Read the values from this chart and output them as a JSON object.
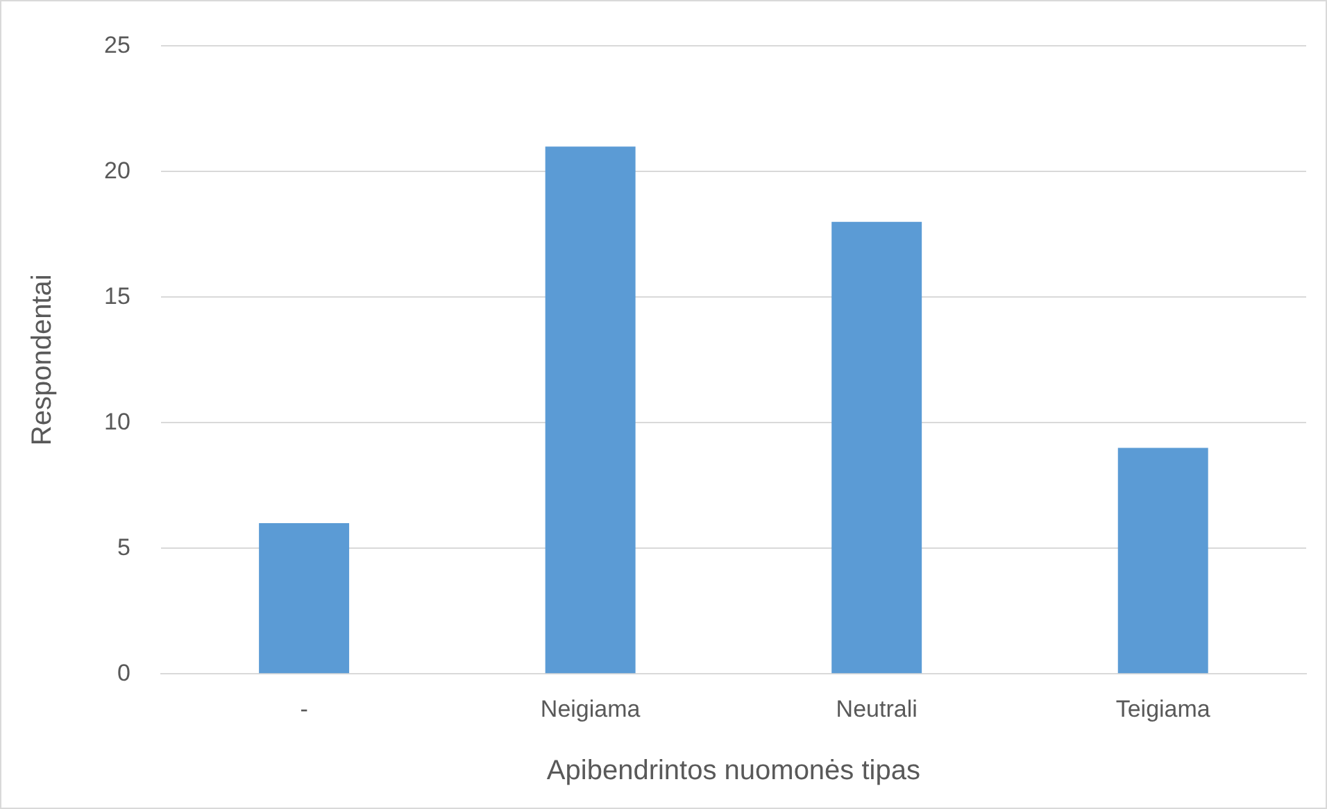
{
  "chart_data": {
    "type": "bar",
    "xlabel": "Apibendrintos nuomonės tipas",
    "ylabel": "Respondentai",
    "categories": [
      "-",
      "Neigiama",
      "Neutrali",
      "Teigiama"
    ],
    "values": [
      6,
      21,
      18,
      9
    ],
    "color": "#5b9bd5",
    "ylim": [
      0,
      25
    ],
    "yticks": [
      0,
      5,
      10,
      15,
      20,
      25
    ],
    "grid": "y",
    "legend": false
  }
}
